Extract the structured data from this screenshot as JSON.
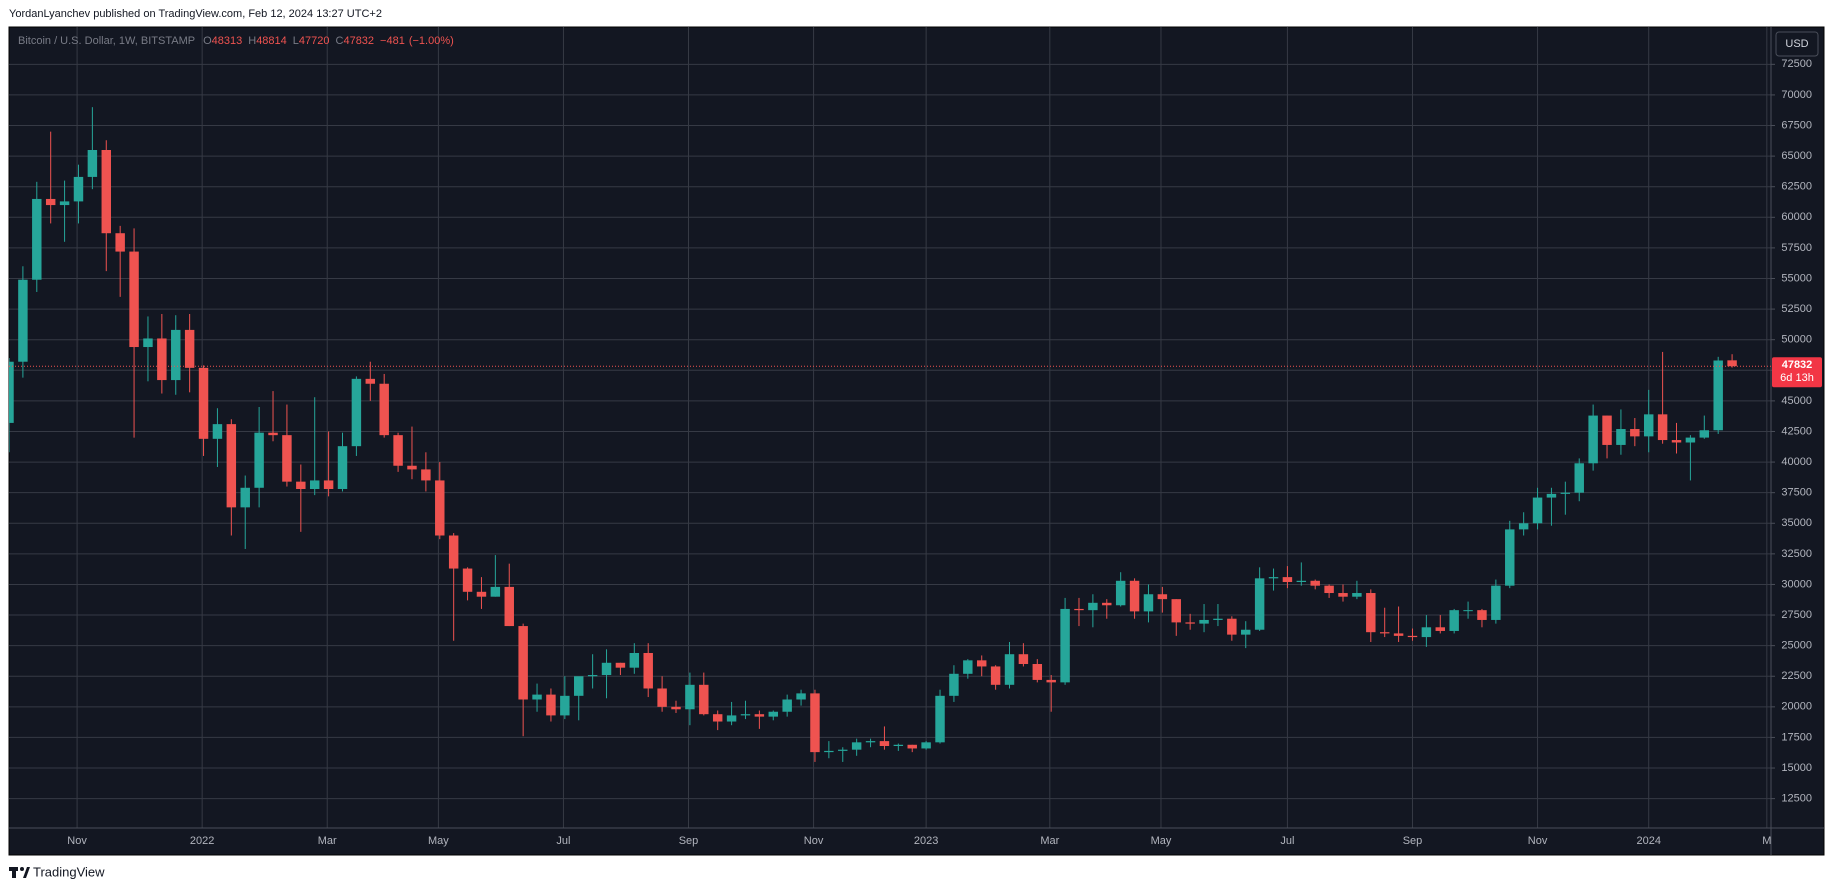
{
  "header": {
    "byline": "YordanLyanchev published on TradingView.com, Feb 12, 2024 13:27 UTC+2"
  },
  "footer": {
    "brand": "TradingView"
  },
  "chart_data": {
    "type": "candlestick",
    "symbol": "Bitcoin / U.S. Dollar, 1W, BITSTAMP",
    "ohlc_labels": [
      "O",
      "H",
      "L",
      "C"
    ],
    "change": {
      "value": -481,
      "label": "−481"
    },
    "change_pct": {
      "value": -1,
      "label": "(−1.00%)"
    },
    "currency": "USD",
    "countdown": "6d 13h",
    "up_color": "#26a69a",
    "down_color": "#ef5350",
    "grid": true,
    "xlim": [
      0,
      126.8
    ],
    "xticks": [
      {
        "value": 4.9,
        "label": "Nov"
      },
      {
        "value": 13.9,
        "label": "2022"
      },
      {
        "value": 22.9,
        "label": "Mar"
      },
      {
        "value": 30.9,
        "label": "May"
      },
      {
        "value": 39.9,
        "label": "Jul"
      },
      {
        "value": 48.9,
        "label": "Sep"
      },
      {
        "value": 57.9,
        "label": "Nov"
      },
      {
        "value": 66.0,
        "label": "2023"
      },
      {
        "value": 74.9,
        "label": "Mar"
      },
      {
        "value": 82.9,
        "label": "May"
      },
      {
        "value": 92.0,
        "label": "Jul"
      },
      {
        "value": 101.0,
        "label": "Sep"
      },
      {
        "value": 110.0,
        "label": "Nov"
      },
      {
        "value": 118.0,
        "label": "2024"
      },
      {
        "value": 126.5,
        "label": "M"
      }
    ],
    "ylim": [
      10100,
      75550
    ],
    "yticks": [
      12500,
      15000,
      17500,
      20000,
      22500,
      25000,
      27500,
      30000,
      32500,
      35000,
      37500,
      40000,
      42500,
      45000,
      47500,
      50000,
      52500,
      55000,
      57500,
      60000,
      62500,
      65000,
      67500,
      70000,
      72500
    ],
    "candles": [
      [
        43200,
        48500,
        40800,
        48200
      ],
      [
        48200,
        56000,
        46900,
        54900
      ],
      [
        54900,
        62900,
        53900,
        61500
      ],
      [
        61500,
        67000,
        59500,
        61000
      ],
      [
        61000,
        63000,
        58000,
        61300
      ],
      [
        61300,
        64300,
        59500,
        63300
      ],
      [
        63300,
        69000,
        62300,
        65500
      ],
      [
        65500,
        66300,
        55600,
        58700
      ],
      [
        58700,
        59300,
        53500,
        57200
      ],
      [
        57200,
        59100,
        42000,
        49400
      ],
      [
        49400,
        51900,
        46600,
        50100
      ],
      [
        50100,
        52100,
        45600,
        46700
      ],
      [
        46700,
        52000,
        45500,
        50800
      ],
      [
        50800,
        52100,
        45700,
        47700
      ],
      [
        47700,
        47900,
        40500,
        41900
      ],
      [
        41900,
        44400,
        39600,
        43100
      ],
      [
        43100,
        43500,
        34000,
        36300
      ],
      [
        36300,
        38900,
        32900,
        37900
      ],
      [
        37900,
        44500,
        36300,
        42400
      ],
      [
        42400,
        45800,
        41700,
        42200
      ],
      [
        42200,
        44700,
        38000,
        38400
      ],
      [
        38400,
        39800,
        34300,
        37800
      ],
      [
        37800,
        45300,
        37300,
        38500
      ],
      [
        38500,
        42500,
        37200,
        37800
      ],
      [
        37800,
        42400,
        37600,
        41300
      ],
      [
        41300,
        47000,
        40500,
        46800
      ],
      [
        46800,
        48200,
        45000,
        46400
      ],
      [
        46400,
        47200,
        42000,
        42200
      ],
      [
        42200,
        42400,
        39200,
        39700
      ],
      [
        39700,
        42900,
        38600,
        39400
      ],
      [
        39400,
        40800,
        37600,
        38500
      ],
      [
        38500,
        40000,
        33700,
        34000
      ],
      [
        34000,
        34200,
        25400,
        31300
      ],
      [
        31300,
        31400,
        28700,
        29400
      ],
      [
        29400,
        30600,
        28000,
        29000
      ],
      [
        29000,
        32400,
        29000,
        29800
      ],
      [
        29800,
        31700,
        26600,
        26600
      ],
      [
        26600,
        26800,
        17600,
        20600
      ],
      [
        20600,
        21900,
        19600,
        21000
      ],
      [
        21000,
        21500,
        18800,
        19300
      ],
      [
        19300,
        22500,
        19000,
        20900
      ],
      [
        20900,
        22000,
        18900,
        22500
      ],
      [
        22500,
        24300,
        21500,
        22600
      ],
      [
        22600,
        24700,
        20700,
        23600
      ],
      [
        23600,
        23600,
        22600,
        23200
      ],
      [
        23200,
        25200,
        22700,
        24400
      ],
      [
        24400,
        25200,
        20800,
        21500
      ],
      [
        21500,
        22500,
        19600,
        20000
      ],
      [
        20000,
        20500,
        19500,
        19800
      ],
      [
        19800,
        22800,
        18500,
        21800
      ],
      [
        21800,
        22800,
        19300,
        19400
      ],
      [
        19400,
        19700,
        18100,
        18800
      ],
      [
        18800,
        20400,
        18500,
        19300
      ],
      [
        19300,
        20500,
        19000,
        19400
      ],
      [
        19400,
        19700,
        18200,
        19200
      ],
      [
        19200,
        19700,
        18900,
        19600
      ],
      [
        19600,
        21000,
        19200,
        20600
      ],
      [
        20600,
        21400,
        20100,
        21100
      ],
      [
        21100,
        21400,
        15500,
        16300
      ],
      [
        16300,
        17200,
        15800,
        16400
      ],
      [
        16400,
        16700,
        15500,
        16500
      ],
      [
        16500,
        17400,
        16000,
        17100
      ],
      [
        17100,
        17400,
        16700,
        17200
      ],
      [
        17200,
        18400,
        16500,
        16800
      ],
      [
        16800,
        17000,
        16400,
        16900
      ],
      [
        16900,
        16900,
        16300,
        16600
      ],
      [
        16600,
        17200,
        16500,
        17100
      ],
      [
        17100,
        21400,
        17000,
        20900
      ],
      [
        20900,
        23400,
        20400,
        22700
      ],
      [
        22700,
        23900,
        22300,
        23800
      ],
      [
        23800,
        24200,
        22500,
        23300
      ],
      [
        23300,
        23400,
        21400,
        21800
      ],
      [
        21800,
        25300,
        21500,
        24300
      ],
      [
        24300,
        25200,
        23300,
        23500
      ],
      [
        23500,
        23900,
        22000,
        22200
      ],
      [
        22200,
        22600,
        19600,
        22000
      ],
      [
        22000,
        28900,
        21800,
        28000
      ],
      [
        28000,
        28900,
        26600,
        27900
      ],
      [
        27900,
        29200,
        26500,
        28500
      ],
      [
        28500,
        28800,
        27200,
        28300
      ],
      [
        28300,
        31000,
        28200,
        30300
      ],
      [
        30300,
        30500,
        27200,
        27800
      ],
      [
        27800,
        30000,
        26900,
        29200
      ],
      [
        29200,
        29800,
        27700,
        28800
      ],
      [
        28800,
        28800,
        25800,
        26900
      ],
      [
        26900,
        27600,
        26300,
        26800
      ],
      [
        26800,
        28400,
        26100,
        27100
      ],
      [
        27100,
        28400,
        26600,
        27200
      ],
      [
        27200,
        27400,
        25400,
        25900
      ],
      [
        25900,
        27000,
        24800,
        26300
      ],
      [
        26300,
        31400,
        26200,
        30500
      ],
      [
        30500,
        31300,
        29500,
        30600
      ],
      [
        30600,
        31500,
        29700,
        30200
      ],
      [
        30200,
        31800,
        29900,
        30300
      ],
      [
        30300,
        30400,
        29600,
        29900
      ],
      [
        29900,
        30000,
        28900,
        29300
      ],
      [
        29300,
        30000,
        28600,
        29000
      ],
      [
        29000,
        30300,
        28800,
        29300
      ],
      [
        29300,
        29600,
        25300,
        26100
      ],
      [
        26100,
        28100,
        25700,
        26000
      ],
      [
        26000,
        28200,
        25300,
        25800
      ],
      [
        25800,
        26400,
        25400,
        25700
      ],
      [
        25700,
        27500,
        24900,
        26500
      ],
      [
        26500,
        27500,
        26000,
        26200
      ],
      [
        26200,
        28000,
        26000,
        27900
      ],
      [
        27900,
        28600,
        27200,
        27900
      ],
      [
        27900,
        28000,
        26500,
        27100
      ],
      [
        27100,
        30400,
        26800,
        29900
      ],
      [
        29900,
        35200,
        29700,
        34500
      ],
      [
        34500,
        35900,
        34000,
        35000
      ],
      [
        35000,
        37900,
        34500,
        37100
      ],
      [
        37100,
        37900,
        34800,
        37400
      ],
      [
        37400,
        38400,
        35700,
        37500
      ],
      [
        37500,
        40300,
        36800,
        39900
      ],
      [
        39900,
        44700,
        39300,
        43800
      ],
      [
        43800,
        43800,
        40300,
        41400
      ],
      [
        41400,
        44300,
        40600,
        42700
      ],
      [
        42700,
        43600,
        41300,
        42100
      ],
      [
        42100,
        45900,
        40800,
        43900
      ],
      [
        43900,
        49000,
        41500,
        41800
      ],
      [
        41800,
        43200,
        40700,
        41600
      ],
      [
        41600,
        42200,
        38500,
        42000
      ],
      [
        42000,
        43800,
        41900,
        42600
      ],
      [
        42600,
        48600,
        42300,
        48300
      ],
      [
        48313,
        48814,
        47720,
        47832
      ]
    ]
  }
}
